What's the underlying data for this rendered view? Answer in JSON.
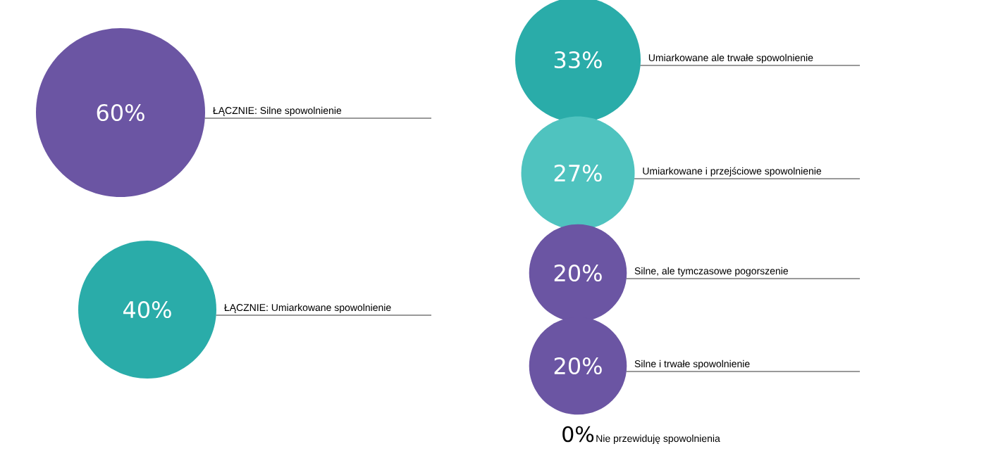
{
  "chart_data": {
    "type": "other",
    "categories": [
      "ŁĄCZNIE: Silne spowolnienie",
      "ŁĄCZNIE: Umiarkowane spowolnienie",
      "Umiarkowane ale trwałe spowolnienie",
      "Umiarkowane i przejściowe spowolnienie",
      "Silne, ale tymczasowe pogorszenie",
      "Silne i trwałe spowolnienie",
      "Nie przewiduję spowolnienia"
    ],
    "values": [
      60,
      40,
      33,
      27,
      20,
      20,
      0
    ],
    "value_labels": [
      "60%",
      "40%",
      "33%",
      "27%",
      "20%",
      "20%",
      "0%"
    ],
    "colors": [
      "#6b55a3",
      "#2aaca9",
      "#2aaca9",
      "#4fc3bf",
      "#6b55a3",
      "#6b55a3",
      "#000000"
    ]
  }
}
